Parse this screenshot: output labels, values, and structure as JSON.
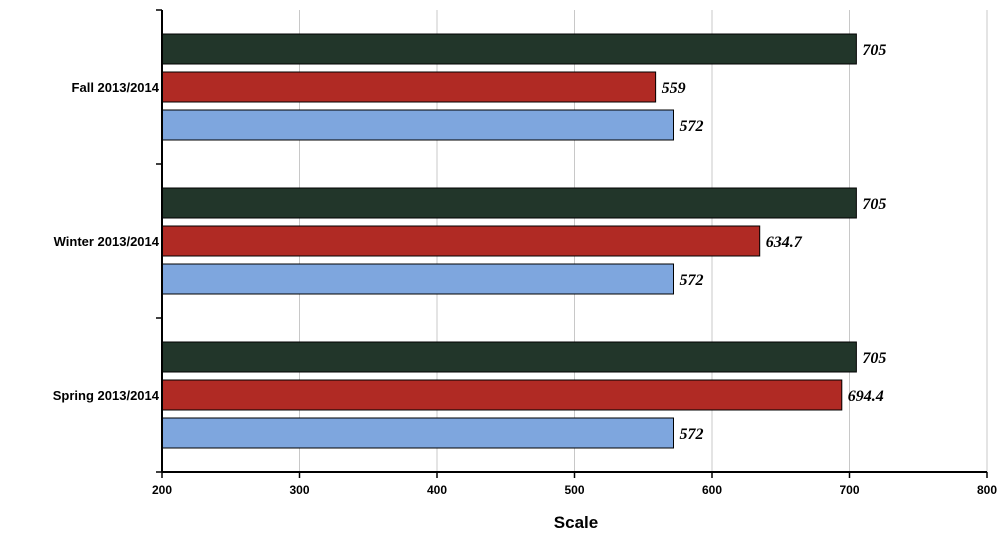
{
  "chart_data": {
    "type": "bar",
    "orientation": "horizontal",
    "categories": [
      "Fall 2013/2014",
      "Winter 2013/2014",
      "Spring 2013/2014"
    ],
    "series": [
      {
        "values": [
          705,
          705,
          705
        ],
        "labels": [
          "705",
          "705",
          "705"
        ],
        "color": "#22362A"
      },
      {
        "values": [
          559,
          634.7,
          694.4
        ],
        "labels": [
          "559",
          "634.7",
          "694.4"
        ],
        "color": "#B02A24"
      },
      {
        "values": [
          572,
          572,
          572
        ],
        "labels": [
          "572",
          "572",
          "572"
        ],
        "color": "#7EA6DE"
      }
    ],
    "xlabel": "Scale",
    "xlim": [
      200,
      800
    ],
    "xticks": [
      200,
      300,
      400,
      500,
      600,
      700,
      800
    ],
    "xtick_labels": [
      "200",
      "300",
      "400",
      "500",
      "600",
      "700",
      "800"
    ],
    "grid": "vertical",
    "legend": "none",
    "bar_border_color": "#000000"
  }
}
